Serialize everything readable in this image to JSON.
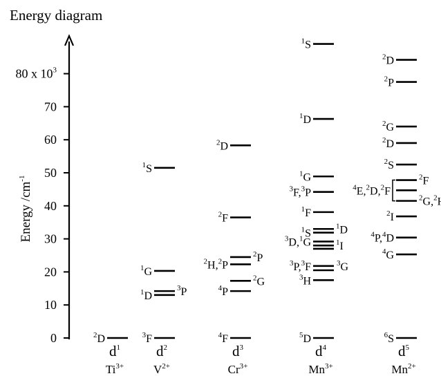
{
  "chart_data": {
    "type": "energy-level-diagram",
    "title": "Energy diagram",
    "ylabel": "Energy /cm-1",
    "ylim": [
      0,
      90
    ],
    "yticks": [
      {
        "value": 0,
        "label": "0"
      },
      {
        "value": 10,
        "label": "10"
      },
      {
        "value": 20,
        "label": "20"
      },
      {
        "value": 30,
        "label": "30"
      },
      {
        "value": 40,
        "label": "40"
      },
      {
        "value": 50,
        "label": "50"
      },
      {
        "value": 60,
        "label": "60"
      },
      {
        "value": 70,
        "label": "70"
      },
      {
        "value": 80,
        "label": "80 x 10",
        "label_sup": "3"
      }
    ],
    "columns": [
      {
        "config": "d",
        "config_sup": "1",
        "ion": "Ti",
        "ion_sup": "3+",
        "levels": [
          {
            "energy": 0,
            "label": [
              [
                "2",
                "D"
              ]
            ],
            "side": "left"
          }
        ]
      },
      {
        "config": "d",
        "config_sup": "2",
        "ion": "V",
        "ion_sup": "2+",
        "levels": [
          {
            "energy": 0,
            "label": [
              [
                "3",
                "F"
              ]
            ],
            "side": "left"
          },
          {
            "energy": 13.0,
            "label": [
              [
                "1",
                "D"
              ]
            ],
            "side": "left"
          },
          {
            "energy": 14.2,
            "label": [
              [
                "3",
                "P"
              ]
            ],
            "side": "right"
          },
          {
            "energy": 20.3,
            "label": [
              [
                "1",
                "G"
              ]
            ],
            "side": "left"
          },
          {
            "energy": 51.5,
            "label": [
              [
                "1",
                "S"
              ]
            ],
            "side": "left"
          }
        ]
      },
      {
        "config": "d",
        "config_sup": "3",
        "ion": "Cr",
        "ion_sup": "3+",
        "levels": [
          {
            "energy": 0,
            "label": [
              [
                "4",
                "F"
              ]
            ],
            "side": "left"
          },
          {
            "energy": 14.2,
            "label": [
              [
                "4",
                "P"
              ]
            ],
            "side": "left"
          },
          {
            "energy": 17.3,
            "label": [
              [
                "2",
                "G"
              ]
            ],
            "side": "right"
          },
          {
            "energy": 22.3,
            "label": [
              [
                "2",
                "H"
              ],
              [
                ",",
                ""
              ],
              [
                "2",
                "P"
              ]
            ],
            "side": "left"
          },
          {
            "energy": 24.5,
            "label": [
              [
                "2",
                "P"
              ]
            ],
            "side": "right"
          },
          {
            "energy": 36.5,
            "label": [
              [
                "2",
                "F"
              ]
            ],
            "side": "left"
          },
          {
            "energy": 58.3,
            "label": [
              [
                "2",
                "D"
              ]
            ],
            "side": "left"
          }
        ]
      },
      {
        "config": "d",
        "config_sup": "4",
        "ion": "Mn",
        "ion_sup": "3+",
        "levels": [
          {
            "energy": 0,
            "label": [
              [
                "5",
                "D"
              ]
            ],
            "side": "left"
          },
          {
            "energy": 17.5,
            "label": [
              [
                "3",
                "H"
              ]
            ],
            "side": "left"
          },
          {
            "energy": 20.5,
            "label": [],
            "side": "none"
          },
          {
            "energy": 21.8,
            "label": [
              [
                "3",
                "P"
              ],
              [
                ",",
                ""
              ],
              [
                "3",
                "F"
              ]
            ],
            "side": "left",
            "extra_right": [
              [
                "3",
                "G"
              ]
            ]
          },
          {
            "energy": 27.0,
            "label": [],
            "side": "none"
          },
          {
            "energy": 28.0,
            "label": [
              [
                "1",
                "I"
              ]
            ],
            "side": "right"
          },
          {
            "energy": 29.2,
            "label": [
              [
                "3",
                "D"
              ],
              [
                ",",
                ""
              ],
              [
                "1",
                "G"
              ]
            ],
            "side": "left"
          },
          {
            "energy": 31.9,
            "label": [
              [
                "1",
                "S"
              ]
            ],
            "side": "left"
          },
          {
            "energy": 33.0,
            "label": [
              [
                "1",
                "D"
              ]
            ],
            "side": "right"
          },
          {
            "energy": 38.1,
            "label": [
              [
                "1",
                "F"
              ]
            ],
            "side": "left"
          },
          {
            "energy": 44.2,
            "label": [
              [
                "3",
                "F"
              ],
              [
                ",",
                ""
              ],
              [
                "3",
                "P"
              ]
            ],
            "side": "left"
          },
          {
            "energy": 48.9,
            "label": [
              [
                "1",
                "G"
              ]
            ],
            "side": "left"
          },
          {
            "energy": 66.3,
            "label": [
              [
                "1",
                "D"
              ]
            ],
            "side": "left"
          },
          {
            "energy": 89.0,
            "label": [
              [
                "1",
                "S"
              ]
            ],
            "side": "left"
          }
        ]
      },
      {
        "config": "d",
        "config_sup": "5",
        "ion": "Mn",
        "ion_sup": "2+",
        "levels": [
          {
            "energy": 0,
            "label": [
              [
                "6",
                "S"
              ]
            ],
            "side": "left"
          },
          {
            "energy": 25.3,
            "label": [
              [
                "4",
                "G"
              ]
            ],
            "side": "left"
          },
          {
            "energy": 30.4,
            "label": [
              [
                "4",
                "P"
              ],
              [
                ",",
                ""
              ],
              [
                "4",
                "D"
              ]
            ],
            "side": "left"
          },
          {
            "energy": 36.8,
            "label": [
              [
                "2",
                "I"
              ]
            ],
            "side": "left"
          },
          {
            "energy": 41.5,
            "label": [
              [
                "2",
                "G"
              ],
              [
                ",",
                ""
              ],
              [
                "2",
                "H"
              ]
            ],
            "side": "right"
          },
          {
            "energy": 44.7,
            "label": [],
            "side": "none"
          },
          {
            "energy": 47.8,
            "label": [
              [
                "2",
                "F"
              ]
            ],
            "side": "right"
          },
          {
            "energy": 52.5,
            "label": [
              [
                "2",
                "S"
              ]
            ],
            "side": "left"
          },
          {
            "energy": 59.0,
            "label": [
              [
                "2",
                "D"
              ]
            ],
            "side": "left"
          },
          {
            "energy": 64.0,
            "label": [
              [
                "2",
                "G"
              ]
            ],
            "side": "left"
          },
          {
            "energy": 77.5,
            "label": [
              [
                "2",
                "P"
              ]
            ],
            "side": "left"
          },
          {
            "energy": 84.2,
            "label": [
              [
                "2",
                "D"
              ]
            ],
            "side": "left"
          }
        ],
        "bracket_label": [
          [
            "4",
            "E"
          ],
          [
            ",",
            ""
          ],
          [
            "2",
            "D"
          ],
          [
            ",",
            ""
          ],
          [
            "2",
            "F"
          ]
        ]
      }
    ]
  }
}
